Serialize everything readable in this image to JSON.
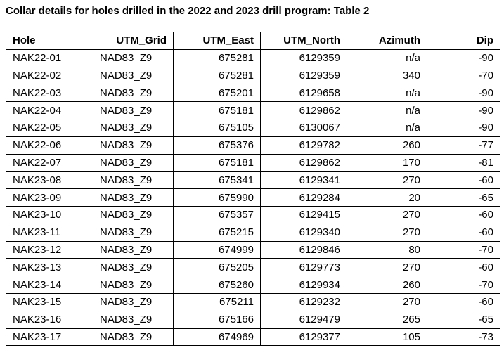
{
  "title": "Collar details for holes drilled in the 2022 and 2023 drill program: Table 2",
  "table": {
    "header": [
      "Hole",
      "UTM_Grid",
      "UTM_East",
      "UTM_North",
      "Azimuth",
      "Dip"
    ],
    "rows": [
      [
        "NAK22-01",
        "NAD83_Z9",
        675281,
        6129359,
        "n/a",
        -90
      ],
      [
        "NAK22-02",
        "NAD83_Z9",
        675281,
        6129359,
        340,
        -70
      ],
      [
        "NAK22-03",
        "NAD83_Z9",
        675201,
        6129658,
        "n/a",
        -90
      ],
      [
        "NAK22-04",
        "NAD83_Z9",
        675181,
        6129862,
        "n/a",
        -90
      ],
      [
        "NAK22-05",
        "NAD83_Z9",
        675105,
        6130067,
        "n/a",
        -90
      ],
      [
        "NAK22-06",
        "NAD83_Z9",
        675376,
        6129782,
        260,
        -77
      ],
      [
        "NAK22-07",
        "NAD83_Z9",
        675181,
        6129862,
        170,
        -81
      ],
      [
        "NAK23-08",
        "NAD83_Z9",
        675341,
        6129341,
        270,
        -60
      ],
      [
        "NAK23-09",
        "NAD83_Z9",
        675990,
        6129284,
        20,
        -65
      ],
      [
        "NAK23-10",
        "NAD83_Z9",
        675357,
        6129415,
        270,
        -60
      ],
      [
        "NAK23-11",
        "NAD83_Z9",
        675215,
        6129340,
        270,
        -60
      ],
      [
        "NAK23-12",
        "NAD83_Z9",
        674999,
        6129846,
        80,
        -70
      ],
      [
        "NAK23-13",
        "NAD83_Z9",
        675205,
        6129773,
        270,
        -60
      ],
      [
        "NAK23-14",
        "NAD83_Z9",
        675260,
        6129934,
        260,
        -70
      ],
      [
        "NAK23-15",
        "NAD83_Z9",
        675211,
        6129232,
        270,
        -60
      ],
      [
        "NAK23-16",
        "NAD83_Z9",
        675166,
        6129479,
        265,
        -65
      ],
      [
        "NAK23-17",
        "NAD83_Z9",
        674969,
        6129377,
        105,
        -73
      ]
    ]
  }
}
